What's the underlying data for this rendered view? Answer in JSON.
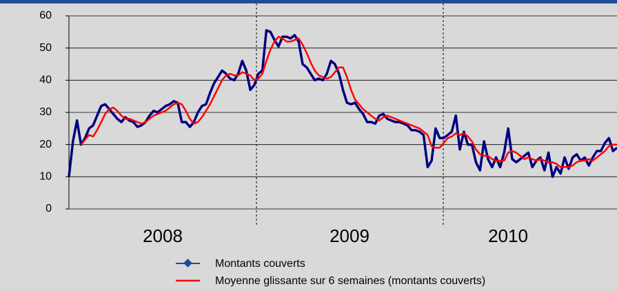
{
  "chart_data": {
    "type": "line",
    "x_group_labels": [
      "2008",
      "2009",
      "2010"
    ],
    "ylim": [
      0,
      60
    ],
    "yticks": [
      0,
      10,
      20,
      30,
      40,
      50,
      60
    ],
    "grid": true,
    "series": [
      {
        "name": "Montants couverts",
        "color": "#000080",
        "marker": "diamond",
        "values": [
          10,
          21,
          27.5,
          20,
          22,
          25,
          26,
          29,
          32,
          32.5,
          31,
          29.5,
          28,
          27,
          28.5,
          27.5,
          27,
          25.5,
          26,
          27,
          29,
          30.5,
          30,
          31,
          32,
          32.5,
          33.5,
          33,
          27,
          27,
          25.5,
          27,
          30,
          32,
          32.5,
          36,
          39,
          41,
          43,
          42,
          40.5,
          40,
          42,
          46,
          43,
          37,
          38.5,
          42,
          43,
          55.5,
          55,
          52.5,
          50.5,
          53.5,
          53.5,
          53,
          54,
          52,
          45,
          44,
          42,
          40,
          40.5,
          40,
          42,
          46,
          45,
          42,
          37,
          33,
          32.5,
          33,
          31,
          29.5,
          27,
          27,
          26.5,
          29,
          29.5,
          28,
          27.5,
          27,
          27,
          26.5,
          26,
          24.5,
          24.5,
          24,
          23,
          13,
          15,
          25,
          22,
          22,
          23,
          24,
          29,
          18.5,
          24,
          20,
          20,
          14.5,
          12,
          21,
          15.5,
          13,
          16,
          13,
          17.5,
          25,
          15.5,
          14.5,
          15.5,
          16.5,
          17.5,
          13,
          15,
          16,
          12,
          17.5,
          10,
          13,
          11,
          16,
          12.5,
          16,
          17,
          15,
          16,
          13.5,
          16,
          18,
          18,
          20.5,
          22,
          18,
          19
        ]
      },
      {
        "name": "Moyenne glissante sur 6 semaines (montants couverts)",
        "color": "#ff0000",
        "values": [
          null,
          null,
          null,
          20,
          21.5,
          23,
          22.5,
          24.5,
          27,
          29.5,
          31,
          31.5,
          30.5,
          29,
          28,
          28,
          27.5,
          27,
          26.5,
          27,
          28,
          29,
          29.5,
          30,
          30.5,
          31.5,
          32.5,
          33,
          32.5,
          30.5,
          28,
          26.5,
          27,
          28.5,
          30.5,
          32.5,
          35,
          37.5,
          40,
          41.5,
          42,
          41.5,
          41.5,
          42.5,
          42,
          41.5,
          40,
          40.5,
          42,
          46,
          49.5,
          52,
          53.5,
          53,
          52,
          52,
          52.5,
          53,
          51,
          48.5,
          45.5,
          43,
          41.5,
          41,
          40.5,
          41,
          42.5,
          44,
          44,
          41,
          37,
          34,
          32.5,
          31,
          30,
          29,
          28,
          27.5,
          28.5,
          29,
          28.5,
          28,
          27.5,
          27,
          26.5,
          26,
          25.5,
          25,
          24,
          23,
          19.5,
          19,
          19,
          20.5,
          22,
          22.5,
          23.5,
          23,
          23.5,
          22.5,
          21,
          18.5,
          17,
          16.5,
          16.5,
          15.5,
          15,
          15,
          15,
          17.5,
          18,
          17.5,
          16.5,
          15.5,
          16,
          15.5,
          15,
          15.5,
          15,
          14.5,
          14.5,
          14,
          13,
          13,
          13,
          13.5,
          14.5,
          15,
          15,
          15.5,
          15,
          16,
          17,
          18,
          19.5,
          20,
          20
        ]
      }
    ]
  }
}
